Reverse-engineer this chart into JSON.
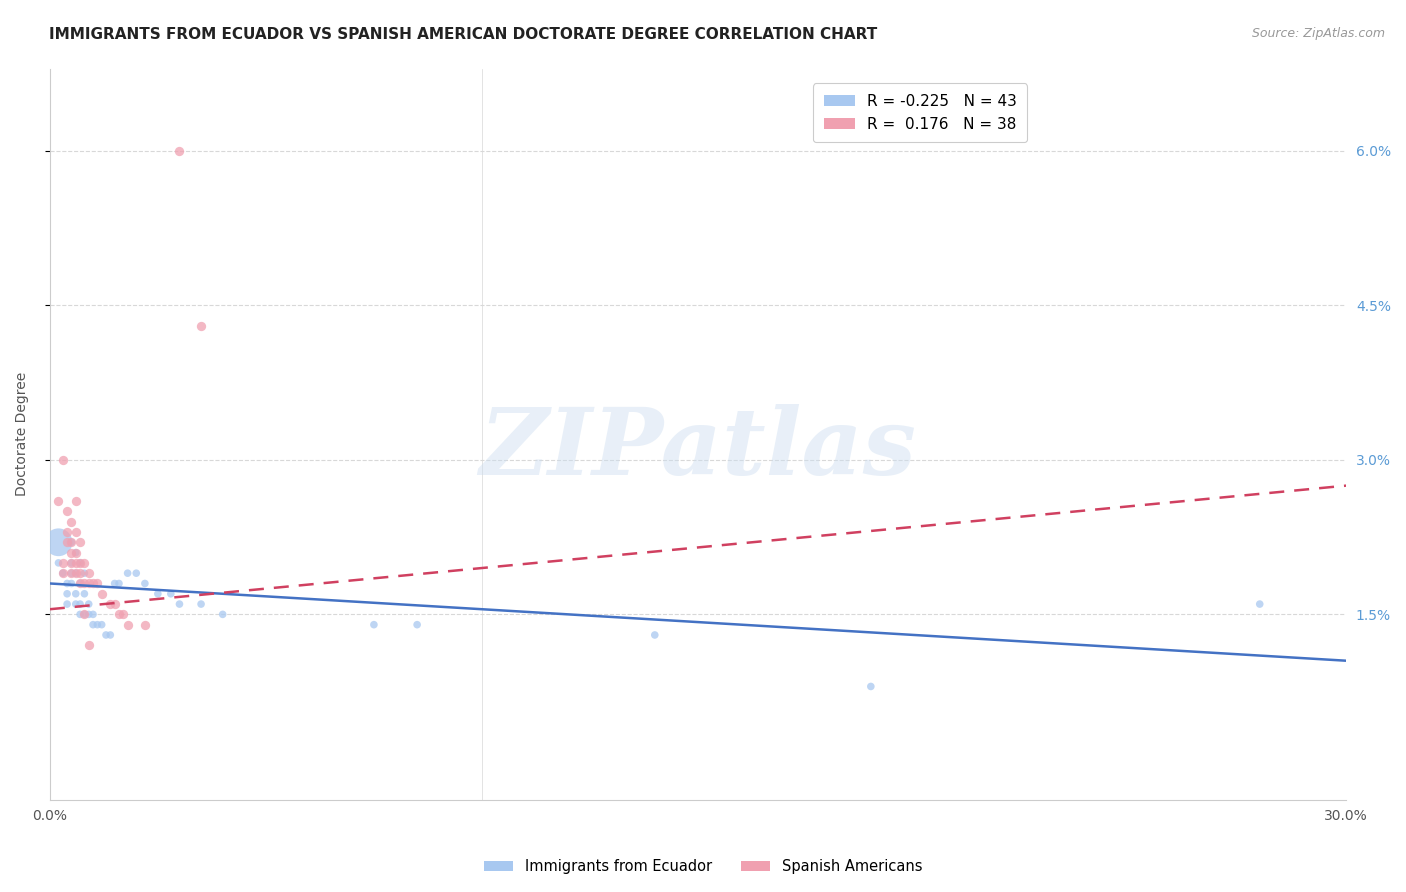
{
  "title": "IMMIGRANTS FROM ECUADOR VS SPANISH AMERICAN DOCTORATE DEGREE CORRELATION CHART",
  "source": "Source: ZipAtlas.com",
  "ylabel": "Doctorate Degree",
  "right_yticks": [
    "6.0%",
    "4.5%",
    "3.0%",
    "1.5%"
  ],
  "right_ytick_vals": [
    0.06,
    0.045,
    0.03,
    0.015
  ],
  "xlim": [
    0.0,
    0.3
  ],
  "ylim": [
    -0.003,
    0.068
  ],
  "blue_color": "#a8c8f0",
  "pink_color": "#f0a0b0",
  "blue_line_color": "#4472c4",
  "pink_line_color": "#d04060",
  "watermark_text": "ZIPatlas",
  "legend_label1": "Immigrants from Ecuador",
  "legend_label2": "Spanish Americans",
  "blue_scatter": [
    [
      0.002,
      0.02
    ],
    [
      0.003,
      0.019
    ],
    [
      0.004,
      0.018
    ],
    [
      0.004,
      0.017
    ],
    [
      0.004,
      0.016
    ],
    [
      0.005,
      0.022
    ],
    [
      0.005,
      0.02
    ],
    [
      0.005,
      0.019
    ],
    [
      0.005,
      0.018
    ],
    [
      0.006,
      0.021
    ],
    [
      0.006,
      0.019
    ],
    [
      0.006,
      0.017
    ],
    [
      0.006,
      0.016
    ],
    [
      0.007,
      0.02
    ],
    [
      0.007,
      0.018
    ],
    [
      0.007,
      0.016
    ],
    [
      0.007,
      0.015
    ],
    [
      0.008,
      0.019
    ],
    [
      0.008,
      0.017
    ],
    [
      0.008,
      0.015
    ],
    [
      0.009,
      0.016
    ],
    [
      0.009,
      0.015
    ],
    [
      0.01,
      0.015
    ],
    [
      0.01,
      0.014
    ],
    [
      0.011,
      0.014
    ],
    [
      0.012,
      0.014
    ],
    [
      0.013,
      0.013
    ],
    [
      0.014,
      0.013
    ],
    [
      0.015,
      0.018
    ],
    [
      0.016,
      0.018
    ],
    [
      0.018,
      0.019
    ],
    [
      0.02,
      0.019
    ],
    [
      0.022,
      0.018
    ],
    [
      0.025,
      0.017
    ],
    [
      0.028,
      0.017
    ],
    [
      0.03,
      0.016
    ],
    [
      0.035,
      0.016
    ],
    [
      0.04,
      0.015
    ],
    [
      0.075,
      0.014
    ],
    [
      0.085,
      0.014
    ],
    [
      0.14,
      0.013
    ],
    [
      0.19,
      0.008
    ],
    [
      0.28,
      0.016
    ],
    [
      0.002,
      0.022
    ]
  ],
  "blue_sizes": [
    30,
    30,
    30,
    30,
    30,
    30,
    30,
    30,
    30,
    30,
    30,
    30,
    30,
    30,
    30,
    30,
    30,
    30,
    30,
    30,
    30,
    30,
    30,
    30,
    30,
    30,
    30,
    30,
    30,
    30,
    30,
    30,
    30,
    30,
    30,
    30,
    30,
    30,
    30,
    30,
    30,
    30,
    30,
    400
  ],
  "pink_scatter": [
    [
      0.002,
      0.026
    ],
    [
      0.003,
      0.02
    ],
    [
      0.003,
      0.019
    ],
    [
      0.003,
      0.03
    ],
    [
      0.004,
      0.025
    ],
    [
      0.004,
      0.023
    ],
    [
      0.004,
      0.022
    ],
    [
      0.005,
      0.024
    ],
    [
      0.005,
      0.022
    ],
    [
      0.005,
      0.021
    ],
    [
      0.005,
      0.02
    ],
    [
      0.005,
      0.019
    ],
    [
      0.006,
      0.026
    ],
    [
      0.006,
      0.023
    ],
    [
      0.006,
      0.021
    ],
    [
      0.006,
      0.02
    ],
    [
      0.006,
      0.019
    ],
    [
      0.007,
      0.022
    ],
    [
      0.007,
      0.02
    ],
    [
      0.007,
      0.019
    ],
    [
      0.007,
      0.018
    ],
    [
      0.008,
      0.02
    ],
    [
      0.008,
      0.018
    ],
    [
      0.008,
      0.015
    ],
    [
      0.009,
      0.019
    ],
    [
      0.009,
      0.018
    ],
    [
      0.009,
      0.012
    ],
    [
      0.01,
      0.018
    ],
    [
      0.011,
      0.018
    ],
    [
      0.012,
      0.017
    ],
    [
      0.014,
      0.016
    ],
    [
      0.015,
      0.016
    ],
    [
      0.016,
      0.015
    ],
    [
      0.017,
      0.015
    ],
    [
      0.018,
      0.014
    ],
    [
      0.022,
      0.014
    ],
    [
      0.03,
      0.06
    ],
    [
      0.035,
      0.043
    ]
  ],
  "blue_trend": {
    "x_start": 0.0,
    "y_start": 0.018,
    "x_end": 0.3,
    "y_end": 0.0105
  },
  "pink_trend": {
    "x_start": 0.0,
    "y_start": 0.0155,
    "x_end": 0.3,
    "y_end": 0.0275
  },
  "grid_color": "#d8d8d8",
  "background_color": "#ffffff",
  "title_fontsize": 11,
  "axis_label_fontsize": 10,
  "tick_fontsize": 10,
  "right_axis_color": "#5b9bd5"
}
